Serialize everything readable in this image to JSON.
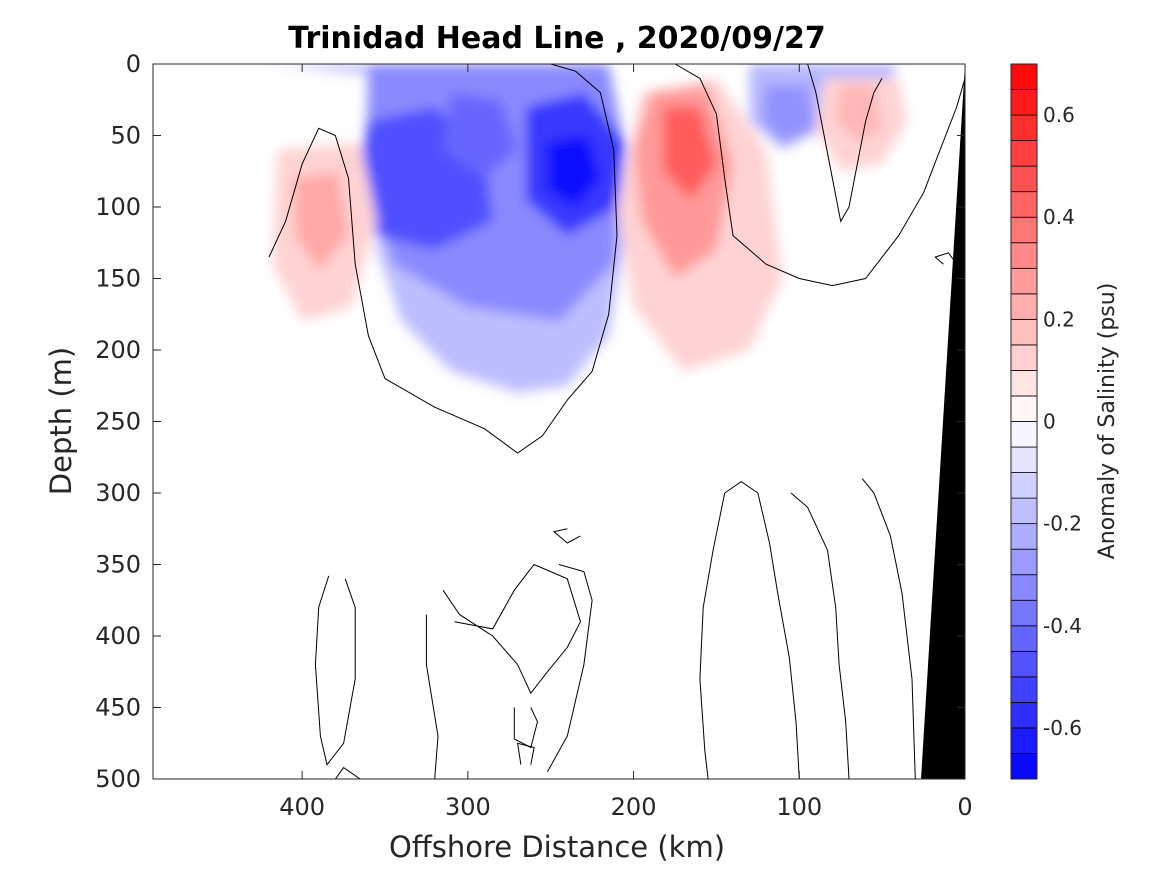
{
  "chart_data": {
    "type": "heatmap",
    "title": "Trinidad Head Line , 2020/09/27",
    "xlabel": "Offshore Distance (km)",
    "ylabel": "Depth (m)",
    "colorbar_label": "Anomaly of Salinity (psu)",
    "x_range": [
      490,
      0
    ],
    "x_direction": "reversed",
    "y_range": [
      0,
      500
    ],
    "y_direction": "depth increasing downward",
    "x_ticks": [
      400,
      300,
      200,
      100,
      0
    ],
    "y_ticks": [
      0,
      50,
      100,
      150,
      200,
      250,
      300,
      350,
      400,
      450,
      500
    ],
    "colorbar_range": [
      -0.7,
      0.7
    ],
    "colorbar_ticks": [
      -0.6,
      -0.4,
      -0.2,
      0,
      0.2,
      0.4,
      0.6
    ],
    "colorbar_tick_labels": [
      "-0.6",
      "-0.4",
      "-0.2",
      "0",
      "0.2",
      "0.4",
      "0.6"
    ],
    "colorbar_levels": 28,
    "colormap": {
      "negative": "#0000ff",
      "zero": "#ffffff",
      "positive": "#ff0000"
    },
    "zero_contour": true,
    "bathymetry_fill": "#000000",
    "data_extent_km": [
      0,
      420
    ],
    "features": [
      {
        "label": "fresh anomaly core",
        "x_km": 237,
        "depth_m": 75,
        "anomaly_psu": -0.65
      },
      {
        "label": "fresh anomaly",
        "x_km": 340,
        "depth_m": 85,
        "anomaly_psu": -0.5
      },
      {
        "label": "fresh anomaly",
        "x_km": 300,
        "depth_m": 60,
        "anomaly_psu": -0.45
      },
      {
        "label": "salty anomaly core",
        "x_km": 168,
        "depth_m": 55,
        "anomaly_psu": 0.45
      },
      {
        "label": "salty anomaly",
        "x_km": 390,
        "depth_m": 100,
        "anomaly_psu": 0.25
      },
      {
        "label": "salty anomaly",
        "x_km": 62,
        "depth_m": 25,
        "anomaly_psu": 0.2
      }
    ]
  }
}
